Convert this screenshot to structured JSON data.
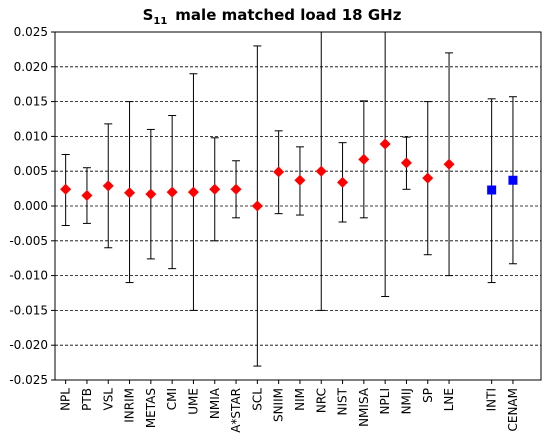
{
  "chart_data": {
    "type": "scatter",
    "title": "S",
    "title_sub": "11",
    "title_rest": "male matched load   18 GHz",
    "xlabel": "",
    "ylabel": "",
    "ylim": [
      -0.025,
      0.025
    ],
    "ytick_step": 0.005,
    "ytick_labels": [
      "0.025",
      "0.020",
      "0.015",
      "0.010",
      "0.005",
      "0.000",
      "-0.005",
      "-0.010",
      "-0.015",
      "-0.020",
      "-0.025"
    ],
    "grid": true,
    "gap_before": [
      "INTI"
    ],
    "categories": [
      "NPL",
      "PTB",
      "VSL",
      "INRIM",
      "METAS",
      "CMI",
      "UME",
      "NMIA",
      "A*STAR",
      "SCL",
      "SNIIM",
      "NIM",
      "NRC",
      "NIST",
      "NMISA",
      "NPLI",
      "NMIJ",
      "SP",
      "LNE",
      "INTI",
      "CENAM"
    ],
    "series": [
      {
        "marker": "diamond",
        "color": "#ff0000",
        "points": [
          {
            "x": "NPL",
            "y": 0.0024,
            "lo": -0.0028,
            "hi": 0.0074
          },
          {
            "x": "PTB",
            "y": 0.0015,
            "lo": -0.0025,
            "hi": 0.0055
          },
          {
            "x": "VSL",
            "y": 0.0029,
            "lo": -0.006,
            "hi": 0.0118
          },
          {
            "x": "INRIM",
            "y": 0.0019,
            "lo": -0.011,
            "hi": 0.015
          },
          {
            "x": "METAS",
            "y": 0.0017,
            "lo": -0.0076,
            "hi": 0.011
          },
          {
            "x": "CMI",
            "y": 0.002,
            "lo": -0.009,
            "hi": 0.013
          },
          {
            "x": "UME",
            "y": 0.002,
            "lo": -0.015,
            "hi": 0.019
          },
          {
            "x": "NMIA",
            "y": 0.0024,
            "lo": -0.005,
            "hi": 0.0098
          },
          {
            "x": "A*STAR",
            "y": 0.0024,
            "lo": -0.0017,
            "hi": 0.0065
          },
          {
            "x": "SCL",
            "y": 0.0,
            "lo": -0.023,
            "hi": 0.023
          },
          {
            "x": "SNIIM",
            "y": 0.0049,
            "lo": -0.0011,
            "hi": 0.0108
          },
          {
            "x": "NIM",
            "y": 0.0037,
            "lo": -0.0013,
            "hi": 0.0085
          },
          {
            "x": "NRC",
            "y": 0.005,
            "lo": -0.015,
            "hi": 0.025
          },
          {
            "x": "NIST",
            "y": 0.0034,
            "lo": -0.0023,
            "hi": 0.0091
          },
          {
            "x": "NMISA",
            "y": 0.0067,
            "lo": -0.0017,
            "hi": 0.0151
          },
          {
            "x": "NPLI",
            "y": 0.0089,
            "lo": -0.013,
            "hi": 0.025
          },
          {
            "x": "NMIJ",
            "y": 0.0062,
            "lo": 0.0024,
            "hi": 0.0099
          },
          {
            "x": "SP",
            "y": 0.004,
            "lo": -0.007,
            "hi": 0.015
          },
          {
            "x": "LNE",
            "y": 0.006,
            "lo": -0.01,
            "hi": 0.022
          }
        ]
      },
      {
        "marker": "square",
        "color": "#0000ff",
        "points": [
          {
            "x": "INTI",
            "y": 0.0023,
            "lo": -0.011,
            "hi": 0.0154
          },
          {
            "x": "CENAM",
            "y": 0.0037,
            "lo": -0.0083,
            "hi": 0.0157
          }
        ]
      }
    ]
  }
}
